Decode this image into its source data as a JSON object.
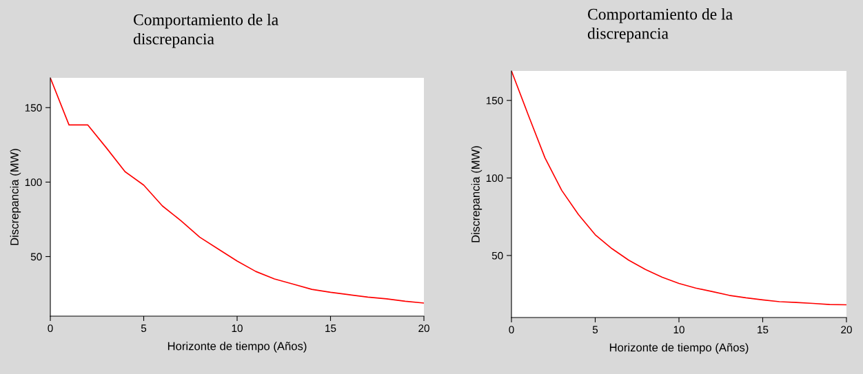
{
  "chart_data": [
    {
      "type": "line",
      "title": "Comportamiento de la\ndiscrepancia",
      "xlabel": "Horizonte de tiempo (Años)",
      "ylabel": "Discrepancia (MW)",
      "x": [
        0,
        1,
        2,
        3,
        4,
        5,
        6,
        7,
        8,
        9,
        10,
        11,
        12,
        13,
        14,
        15,
        16,
        17,
        18,
        19,
        20
      ],
      "series": [
        {
          "color": "#ff0000",
          "values": [
            170,
            138.4,
            138.4,
            123,
            107,
            98,
            84,
            74,
            63,
            55,
            47,
            40,
            35,
            31.5,
            28,
            26,
            24.4,
            22.8,
            21.6,
            20,
            18.8
          ]
        }
      ],
      "xlim": [
        0,
        20
      ],
      "ylim": [
        10,
        170
      ],
      "xticks": [
        0,
        5,
        10,
        15,
        20
      ],
      "yticks": [
        50,
        100,
        150
      ],
      "grid": false,
      "marker": "none",
      "line_style": "solid"
    },
    {
      "type": "line",
      "title": "Comportamiento de la\ndiscrepancia",
      "xlabel": "Horizonte de tiempo (Años)",
      "ylabel": "Discrepancia (MW)",
      "x": [
        0,
        1,
        2,
        3,
        4,
        5,
        6,
        7,
        8,
        9,
        10,
        11,
        12,
        13,
        14,
        15,
        16,
        17,
        18,
        19,
        20
      ],
      "series": [
        {
          "color": "#ff0000",
          "values": [
            169,
            140.7,
            113,
            92,
            76.4,
            63.4,
            54.4,
            47,
            41,
            36,
            32,
            29,
            26.7,
            24.3,
            22.7,
            21.4,
            20.2,
            19.7,
            19.1,
            18.4,
            18.2
          ]
        }
      ],
      "xlim": [
        0,
        20
      ],
      "ylim": [
        10,
        169
      ],
      "xticks": [
        0,
        5,
        10,
        15,
        20
      ],
      "yticks": [
        50,
        100,
        150
      ],
      "grid": false,
      "marker": "none",
      "line_style": "solid"
    }
  ]
}
